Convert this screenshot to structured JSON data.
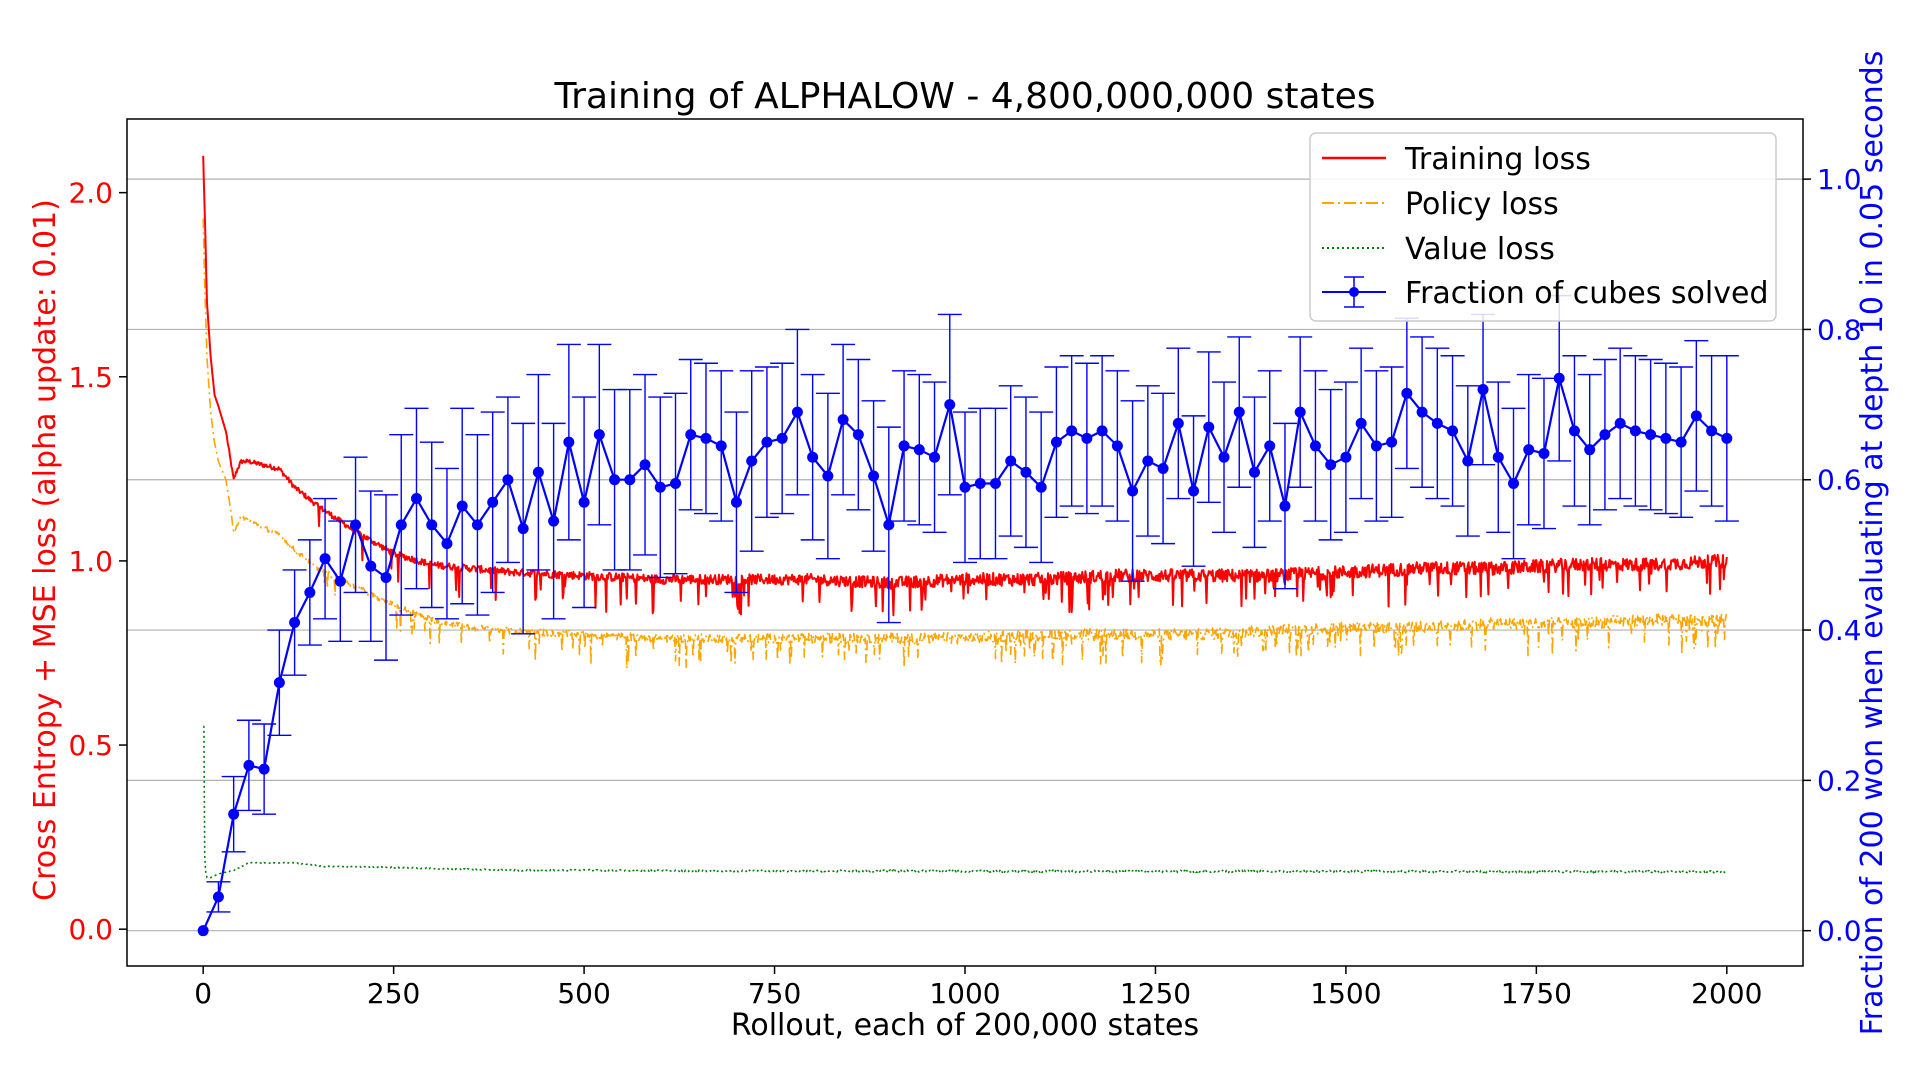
{
  "chart_data": {
    "type": "line",
    "title": "Training of ALPHALOW - 4,800,000,000 states",
    "xlabel": "Rollout, each of 200,000 states",
    "ylabel_left": "Cross Entropy + MSE loss (alpha update: 0.01)",
    "ylabel_right": "Fraction of 200 won when evaluating at depth 10 in 0.05 seconds",
    "xlim": [
      -100,
      2100
    ],
    "ylim_left": [
      -0.1,
      2.2
    ],
    "ylim_right": [
      -0.047,
      1.08
    ],
    "xticks": [
      0,
      250,
      500,
      750,
      1000,
      1250,
      1500,
      1750,
      2000
    ],
    "xtick_labels": [
      "0",
      "250",
      "500",
      "750",
      "1000",
      "1250",
      "1500",
      "1750",
      "2000"
    ],
    "yticks_left": [
      0.0,
      0.5,
      1.0,
      1.5,
      2.0
    ],
    "ytick_labels_left": [
      "0.0",
      "0.5",
      "1.0",
      "1.5",
      "2.0"
    ],
    "yticks_right": [
      0.0,
      0.2,
      0.4,
      0.6,
      0.8,
      1.0
    ],
    "ytick_labels_right": [
      "0.0",
      "0.2",
      "0.4",
      "0.6",
      "0.8",
      "1.0"
    ],
    "grid": "right-axis horizontal",
    "legend_position": "top-right",
    "colors": {
      "training": "#ff0000",
      "policy": "#ffa500",
      "value": "#008000",
      "solved": "#0000ff",
      "left_axis": "#ff0000",
      "right_axis": "#0000ff"
    },
    "loss_series": [
      {
        "name": "Training loss",
        "axis": "left",
        "style": "solid",
        "x": [
          0,
          2,
          5,
          10,
          15,
          20,
          30,
          40,
          45,
          50,
          60,
          80,
          100,
          120,
          150,
          200,
          250,
          300,
          350,
          400,
          500,
          600,
          700,
          800,
          900,
          1000,
          1100,
          1200,
          1300,
          1400,
          1500,
          1600,
          1700,
          1800,
          1900,
          2000
        ],
        "y": [
          2.1,
          1.95,
          1.7,
          1.55,
          1.45,
          1.42,
          1.35,
          1.22,
          1.25,
          1.27,
          1.27,
          1.26,
          1.25,
          1.2,
          1.15,
          1.08,
          1.02,
          0.99,
          0.98,
          0.97,
          0.96,
          0.95,
          0.95,
          0.95,
          0.94,
          0.95,
          0.95,
          0.96,
          0.96,
          0.96,
          0.97,
          0.98,
          0.98,
          0.99,
          0.99,
          1.0
        ]
      },
      {
        "name": "Policy loss",
        "axis": "left",
        "style": "dashdot",
        "x": [
          0,
          2,
          5,
          10,
          15,
          20,
          30,
          40,
          45,
          50,
          60,
          80,
          100,
          120,
          150,
          200,
          250,
          300,
          350,
          400,
          500,
          600,
          700,
          800,
          900,
          1000,
          1100,
          1200,
          1300,
          1400,
          1500,
          1600,
          1700,
          1800,
          1900,
          2000
        ],
        "y": [
          1.93,
          1.75,
          1.55,
          1.4,
          1.32,
          1.27,
          1.22,
          1.08,
          1.1,
          1.12,
          1.11,
          1.09,
          1.07,
          1.03,
          0.98,
          0.93,
          0.88,
          0.84,
          0.82,
          0.81,
          0.8,
          0.79,
          0.79,
          0.79,
          0.79,
          0.79,
          0.8,
          0.8,
          0.8,
          0.81,
          0.82,
          0.82,
          0.83,
          0.83,
          0.84,
          0.84
        ]
      },
      {
        "name": "Value loss",
        "axis": "left",
        "style": "dotted",
        "x": [
          0,
          1,
          2,
          3,
          5,
          10,
          20,
          40,
          60,
          80,
          120,
          160,
          200,
          300,
          400,
          500,
          700,
          900,
          1100,
          1300,
          1500,
          1700,
          1900,
          2000
        ],
        "y": [
          0.55,
          0.55,
          0.2,
          0.16,
          0.14,
          0.14,
          0.15,
          0.16,
          0.18,
          0.18,
          0.18,
          0.17,
          0.17,
          0.165,
          0.16,
          0.16,
          0.158,
          0.158,
          0.157,
          0.157,
          0.157,
          0.156,
          0.156,
          0.156
        ]
      }
    ],
    "solved_series": {
      "name": "Fraction of cubes solved",
      "axis": "right",
      "style": "solid-markers-errorbars",
      "x": [
        0,
        20,
        40,
        60,
        80,
        100,
        120,
        140,
        160,
        180,
        200,
        220,
        240,
        260,
        280,
        300,
        320,
        340,
        360,
        380,
        400,
        420,
        440,
        460,
        480,
        500,
        520,
        540,
        560,
        580,
        600,
        620,
        640,
        660,
        680,
        700,
        720,
        740,
        760,
        780,
        800,
        820,
        840,
        860,
        880,
        900,
        920,
        940,
        960,
        980,
        1000,
        1020,
        1040,
        1060,
        1080,
        1100,
        1120,
        1140,
        1160,
        1180,
        1200,
        1220,
        1240,
        1260,
        1280,
        1300,
        1320,
        1340,
        1360,
        1380,
        1400,
        1420,
        1440,
        1460,
        1480,
        1500,
        1520,
        1540,
        1560,
        1580,
        1600,
        1620,
        1640,
        1660,
        1680,
        1700,
        1720,
        1740,
        1760,
        1780,
        1800,
        1820,
        1840,
        1860,
        1880,
        1900,
        1920,
        1940,
        1960,
        1980,
        2000
      ],
      "y": [
        0.0,
        0.045,
        0.155,
        0.22,
        0.215,
        0.33,
        0.41,
        0.45,
        0.495,
        0.465,
        0.54,
        0.485,
        0.47,
        0.54,
        0.575,
        0.54,
        0.515,
        0.565,
        0.54,
        0.57,
        0.6,
        0.535,
        0.61,
        0.545,
        0.65,
        0.57,
        0.66,
        0.6,
        0.6,
        0.62,
        0.59,
        0.595,
        0.66,
        0.655,
        0.645,
        0.57,
        0.625,
        0.65,
        0.655,
        0.69,
        0.63,
        0.605,
        0.68,
        0.66,
        0.605,
        0.54,
        0.645,
        0.64,
        0.63,
        0.7,
        0.59,
        0.595,
        0.595,
        0.625,
        0.61,
        0.59,
        0.65,
        0.665,
        0.655,
        0.665,
        0.645,
        0.585,
        0.625,
        0.615,
        0.675,
        0.585,
        0.67,
        0.63,
        0.69,
        0.61,
        0.645,
        0.565,
        0.69,
        0.645,
        0.62,
        0.63,
        0.675,
        0.645,
        0.65,
        0.715,
        0.69,
        0.675,
        0.665,
        0.625,
        0.72,
        0.63,
        0.595,
        0.64,
        0.635,
        0.735,
        0.665,
        0.64,
        0.66,
        0.675,
        0.665,
        0.66,
        0.655,
        0.65,
        0.685,
        0.665,
        0.655
      ],
      "error": [
        0.0,
        0.02,
        0.05,
        0.06,
        0.06,
        0.07,
        0.07,
        0.07,
        0.08,
        0.08,
        0.09,
        0.1,
        0.11,
        0.12,
        0.12,
        0.11,
        0.1,
        0.13,
        0.12,
        0.12,
        0.11,
        0.14,
        0.13,
        0.13,
        0.13,
        0.14,
        0.12,
        0.12,
        0.12,
        0.12,
        0.12,
        0.12,
        0.1,
        0.1,
        0.1,
        0.12,
        0.12,
        0.1,
        0.1,
        0.11,
        0.11,
        0.11,
        0.1,
        0.1,
        0.1,
        0.13,
        0.1,
        0.1,
        0.1,
        0.12,
        0.1,
        0.1,
        0.1,
        0.1,
        0.1,
        0.1,
        0.1,
        0.1,
        0.1,
        0.1,
        0.1,
        0.12,
        0.1,
        0.1,
        0.1,
        0.1,
        0.1,
        0.1,
        0.1,
        0.1,
        0.1,
        0.11,
        0.1,
        0.1,
        0.1,
        0.1,
        0.1,
        0.1,
        0.1,
        0.1,
        0.1,
        0.1,
        0.1,
        0.1,
        0.1,
        0.1,
        0.1,
        0.1,
        0.1,
        0.11,
        0.1,
        0.1,
        0.1,
        0.1,
        0.1,
        0.1,
        0.1,
        0.1,
        0.1,
        0.1,
        0.11
      ]
    }
  }
}
